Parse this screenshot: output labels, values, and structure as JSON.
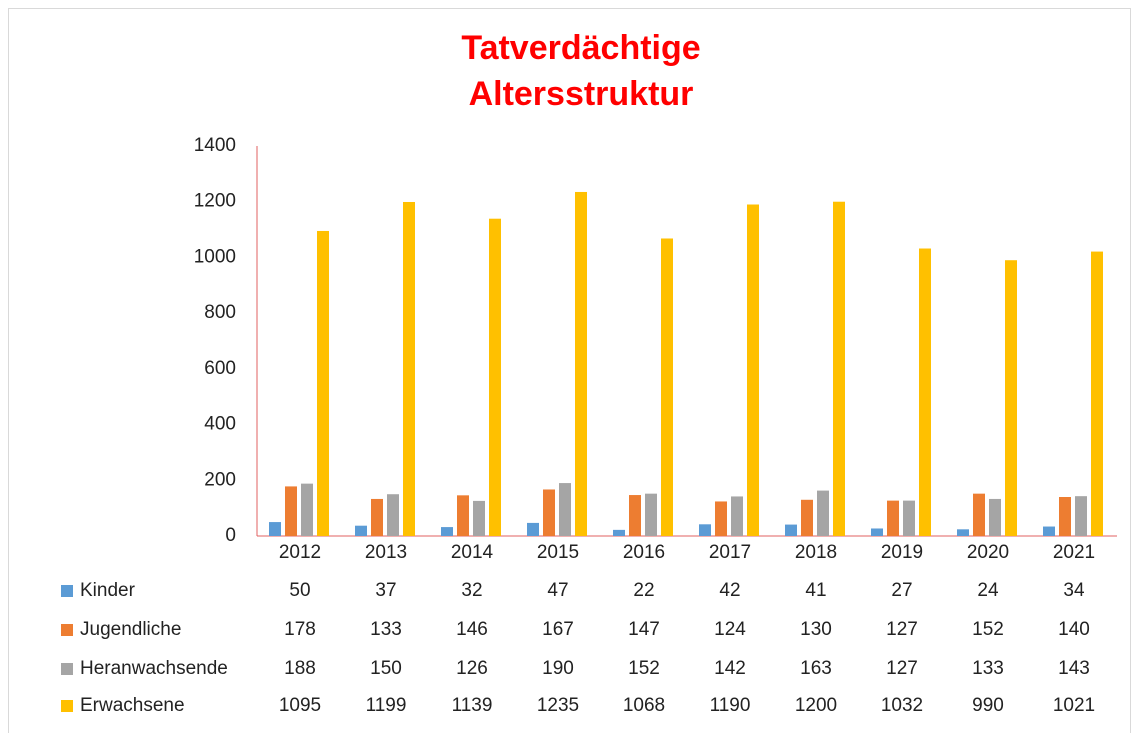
{
  "chart_data": {
    "type": "bar",
    "title": [
      "Tatverdächtige",
      "Altersstruktur"
    ],
    "title_color": "#ff0000",
    "categories": [
      "2012",
      "2013",
      "2014",
      "2015",
      "2016",
      "2017",
      "2018",
      "2019",
      "2020",
      "2021"
    ],
    "series": [
      {
        "name": "Kinder",
        "color": "#5b9bd5",
        "values": [
          50,
          37,
          32,
          47,
          22,
          42,
          41,
          27,
          24,
          34
        ]
      },
      {
        "name": "Jugendliche",
        "color": "#ed7d31",
        "values": [
          178,
          133,
          146,
          167,
          147,
          124,
          130,
          127,
          152,
          140
        ]
      },
      {
        "name": "Heranwachsende",
        "color": "#a5a5a5",
        "values": [
          188,
          150,
          126,
          190,
          152,
          142,
          163,
          127,
          133,
          143
        ]
      },
      {
        "name": "Erwachsene",
        "color": "#ffc000",
        "values": [
          1095,
          1199,
          1139,
          1235,
          1068,
          1190,
          1200,
          1032,
          990,
          1021
        ]
      }
    ],
    "ylim": [
      0,
      1400
    ],
    "yticks": [
      0,
      200,
      400,
      600,
      800,
      1000,
      1200,
      1400
    ],
    "grid": false,
    "axis_color": "#e06060"
  }
}
